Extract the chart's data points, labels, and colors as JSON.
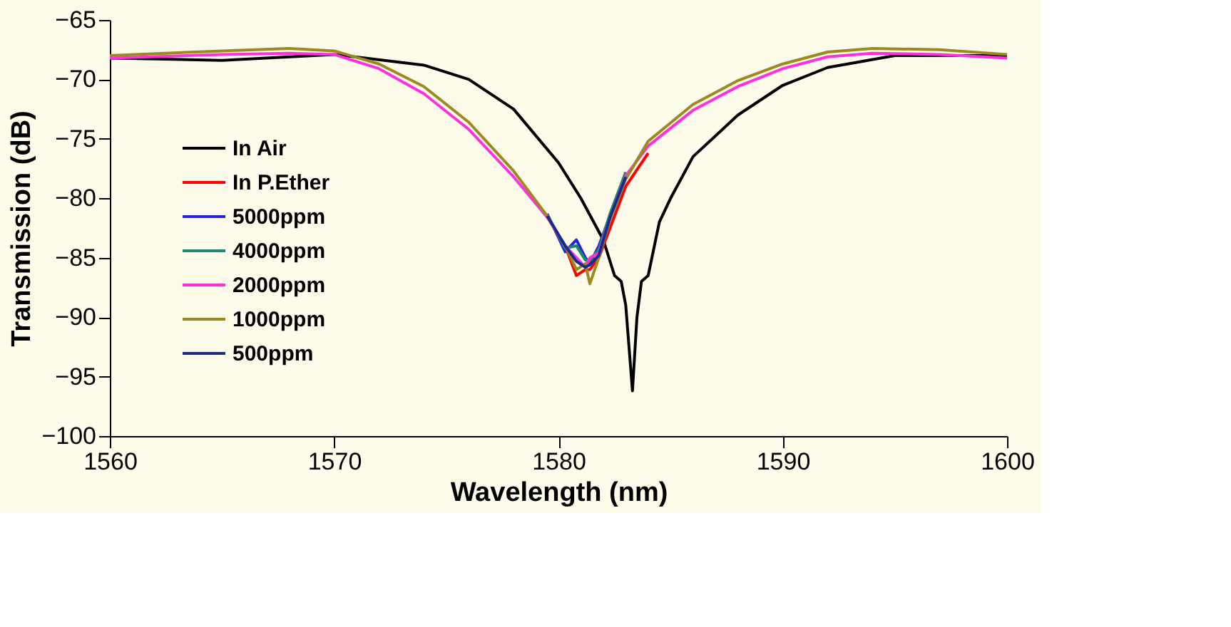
{
  "chart_data": {
    "type": "line",
    "xlabel": "Wavelength (nm)",
    "ylabel": "Transmission (dB)",
    "xlim": [
      1560,
      1600
    ],
    "xticks": [
      1560,
      1570,
      1580,
      1590,
      1600
    ],
    "ylim": [
      -100,
      -65
    ],
    "yticks": [
      -100,
      -95,
      -90,
      -85,
      -80,
      -75,
      -70,
      -65
    ],
    "grid": false,
    "legend": "bottom left",
    "marker": "none",
    "line_style": "solid",
    "x": [
      1560,
      1565,
      1568,
      1570,
      1572,
      1574,
      1576,
      1578,
      1579.5,
      1580.3,
      1580.8,
      1581.2,
      1581.4,
      1581.8,
      1582.3,
      1583,
      1584,
      1586,
      1588,
      1590,
      1592,
      1594,
      1597,
      1600
    ],
    "series": [
      {
        "name": "In Air",
        "color": "#000000",
        "x": [
          1560,
          1565,
          1570,
          1574,
          1576,
          1578,
          1580,
          1581,
          1582,
          1582.5,
          1582.8,
          1583.0,
          1583.3,
          1583.5,
          1583.7,
          1584,
          1584.5,
          1585,
          1586,
          1588,
          1590,
          1592,
          1595,
          1600
        ],
        "values": [
          -68.2,
          -68.4,
          -67.9,
          -68.8,
          -70,
          -72.5,
          -77,
          -80,
          -83.5,
          -86.5,
          -87,
          -89,
          -96.2,
          -90,
          -87,
          -86.5,
          -82,
          -80,
          -76.5,
          -73,
          -70.5,
          -69,
          -68,
          -68
        ]
      },
      {
        "name": "In P.Ether",
        "color": "#ff0000",
        "values": [
          null,
          null,
          null,
          null,
          null,
          null,
          null,
          null,
          -81.5,
          -84,
          -86.5,
          -86,
          -86,
          -85,
          -82.5,
          -79,
          -76.2,
          null,
          null,
          null,
          null,
          null,
          null,
          null
        ]
      },
      {
        "name": "5000ppm",
        "color": "#2424d8",
        "values": [
          null,
          null,
          null,
          null,
          null,
          null,
          null,
          null,
          -81.3,
          -84.5,
          -83.5,
          -85,
          -85.5,
          -84,
          -81.5,
          -78,
          null,
          null,
          null,
          null,
          null,
          null,
          null,
          null
        ]
      },
      {
        "name": "4000ppm",
        "color": "#1a8a6e",
        "values": [
          null,
          null,
          null,
          null,
          null,
          null,
          null,
          null,
          -81.4,
          -84.2,
          -84,
          -85.2,
          -85.3,
          -84.3,
          -81.3,
          -77.8,
          null,
          null,
          null,
          null,
          null,
          null,
          null,
          null
        ]
      },
      {
        "name": "2000ppm",
        "color": "#ff30e0",
        "values": [
          -68.2,
          -67.9,
          -67.8,
          -67.9,
          -69.1,
          -71.2,
          -74.2,
          -78.2,
          -81.6,
          -84,
          -85,
          -85.8,
          -85,
          -84.6,
          -81.6,
          -78.1,
          -75.6,
          -72.6,
          -70.6,
          -69.1,
          -68.1,
          -67.8,
          -67.9,
          -68.2
        ]
      },
      {
        "name": "1000ppm",
        "color": "#9a8a20",
        "values": [
          -68.0,
          -67.6,
          -67.4,
          -67.6,
          -68.7,
          -70.6,
          -73.6,
          -77.7,
          -81.5,
          -84,
          -86,
          -85.5,
          -87.2,
          -85,
          -81.8,
          -78.4,
          -75.2,
          -72.1,
          -70.1,
          -68.7,
          -67.7,
          -67.4,
          -67.5,
          -67.9
        ]
      },
      {
        "name": "500ppm",
        "color": "#1a2a8a",
        "values": [
          null,
          null,
          null,
          null,
          null,
          null,
          null,
          null,
          -81.5,
          -84,
          -85.3,
          -85.8,
          -85.6,
          -84.8,
          -81.6,
          -78.2,
          null,
          null,
          null,
          null,
          null,
          null,
          null,
          null
        ]
      }
    ]
  }
}
